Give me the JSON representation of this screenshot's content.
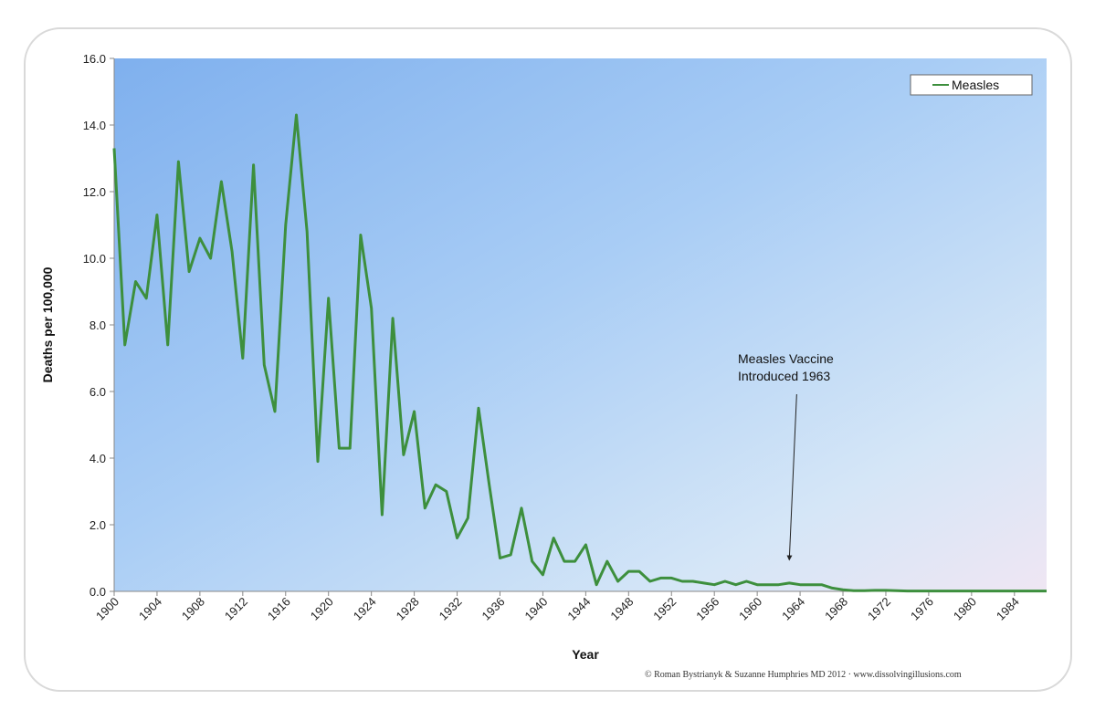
{
  "chart_data": {
    "type": "line",
    "xlabel": "Year",
    "ylabel": "Deaths per 100,000",
    "ylim": [
      0,
      16
    ],
    "y_ticks": [
      "0.0",
      "2.0",
      "4.0",
      "6.0",
      "8.0",
      "10.0",
      "12.0",
      "14.0",
      "16.0"
    ],
    "x_ticks": [
      "1900",
      "1904",
      "1908",
      "1912",
      "1916",
      "1920",
      "1924",
      "1928",
      "1932",
      "1936",
      "1940",
      "1944",
      "1948",
      "1952",
      "1956",
      "1960",
      "1964",
      "1968",
      "1972",
      "1976",
      "1980",
      "1984"
    ],
    "x_range": [
      1900,
      1987
    ],
    "grid": false,
    "legend_position": "top-right",
    "line_color": "#3d8f3d",
    "series": [
      {
        "name": "Measles",
        "x": [
          1900,
          1901,
          1902,
          1903,
          1904,
          1905,
          1906,
          1907,
          1908,
          1909,
          1910,
          1911,
          1912,
          1913,
          1914,
          1915,
          1916,
          1917,
          1918,
          1919,
          1920,
          1921,
          1922,
          1923,
          1924,
          1925,
          1926,
          1927,
          1928,
          1929,
          1930,
          1931,
          1932,
          1933,
          1934,
          1935,
          1936,
          1937,
          1938,
          1939,
          1940,
          1941,
          1942,
          1943,
          1944,
          1945,
          1946,
          1947,
          1948,
          1949,
          1950,
          1951,
          1952,
          1953,
          1954,
          1955,
          1956,
          1957,
          1958,
          1959,
          1960,
          1961,
          1962,
          1963,
          1964,
          1965,
          1966,
          1967,
          1968,
          1969,
          1970,
          1971,
          1972,
          1973,
          1974,
          1975,
          1976,
          1977,
          1978,
          1979,
          1980,
          1981,
          1982,
          1983,
          1984,
          1985,
          1986,
          1987
        ],
        "values": [
          13.3,
          7.4,
          9.3,
          8.8,
          11.3,
          7.4,
          12.9,
          9.6,
          10.6,
          10.0,
          12.3,
          10.2,
          7.0,
          12.8,
          6.8,
          5.4,
          11.0,
          14.3,
          10.8,
          3.9,
          8.8,
          4.3,
          4.3,
          10.7,
          8.5,
          2.3,
          8.2,
          4.1,
          5.4,
          2.5,
          3.2,
          3.0,
          1.6,
          2.2,
          5.5,
          3.2,
          1.0,
          1.1,
          2.5,
          0.9,
          0.5,
          1.6,
          0.9,
          0.9,
          1.4,
          0.2,
          0.9,
          0.3,
          0.6,
          0.6,
          0.3,
          0.4,
          0.4,
          0.3,
          0.3,
          0.25,
          0.2,
          0.3,
          0.2,
          0.3,
          0.2,
          0.2,
          0.2,
          0.25,
          0.2,
          0.2,
          0.2,
          0.1,
          0.05,
          0.02,
          0.02,
          0.03,
          0.03,
          0.02,
          0.01,
          0.01,
          0.01,
          0.01,
          0.01,
          0.01,
          0.01,
          0.01,
          0.01,
          0.01,
          0.01,
          0.01,
          0.01,
          0.01
        ]
      }
    ],
    "annotation": {
      "line1": "Measles Vaccine",
      "line2": "Introduced 1963",
      "arrow_to": {
        "x": 1963,
        "y": 1.0
      }
    }
  },
  "credit": "© Roman Bystrianyk & Suzanne Humphries MD 2012 · www.dissolvingillusions.com"
}
